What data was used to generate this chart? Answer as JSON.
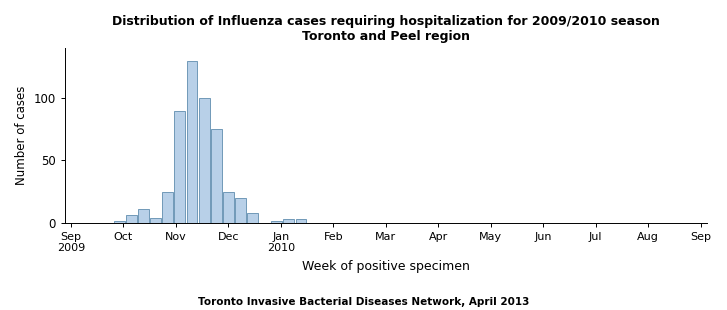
{
  "title_line1": "Distribution of Influenza cases requiring hospitalization for 2009/2010 season",
  "title_line2": "Toronto and Peel region",
  "xlabel": "Week of positive specimen",
  "ylabel": "Number of cases",
  "footnote": "Toronto Invasive Bacterial Diseases Network, April 2013",
  "bar_color": "#b8d0e8",
  "bar_edge_color": "#7099b8",
  "yticks": [
    0,
    50,
    100
  ],
  "ylim": [
    0,
    140
  ],
  "week_values": [
    {
      "week": 4,
      "cases": 1
    },
    {
      "week": 5,
      "cases": 6
    },
    {
      "week": 6,
      "cases": 11
    },
    {
      "week": 7,
      "cases": 4
    },
    {
      "week": 8,
      "cases": 25
    },
    {
      "week": 9,
      "cases": 90
    },
    {
      "week": 10,
      "cases": 130
    },
    {
      "week": 11,
      "cases": 100
    },
    {
      "week": 12,
      "cases": 75
    },
    {
      "week": 13,
      "cases": 25
    },
    {
      "week": 14,
      "cases": 20
    },
    {
      "week": 15,
      "cases": 8
    },
    {
      "week": 17,
      "cases": 1
    },
    {
      "week": 18,
      "cases": 3
    },
    {
      "week": 19,
      "cases": 3
    }
  ],
  "month_tick_positions": [
    0,
    4.33,
    8.67,
    13.0,
    17.33,
    21.67,
    26.0,
    30.33,
    34.67,
    39.0,
    43.33,
    47.67,
    52.0
  ],
  "month_labels": [
    "Sep\n2009",
    "Oct",
    "Nov",
    "Dec",
    "Jan\n2010",
    "Feb",
    "Mar",
    "Apr",
    "May",
    "Jun",
    "Jul",
    "Aug",
    "Sep"
  ],
  "xlim": [
    -0.5,
    52.5
  ]
}
